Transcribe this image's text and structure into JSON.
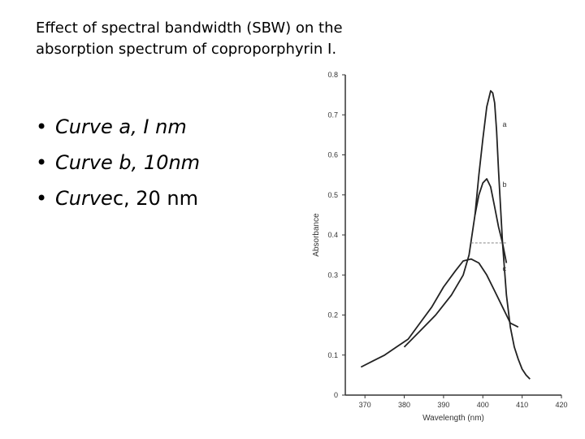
{
  "slide": {
    "title": "Effect of spectral bandwidth (SBW) on the absorption spectrum of coproporphyrin I.",
    "bullets": [
      {
        "symbol": "•",
        "italic_part": "Curve  a, I nm",
        "plain_part": ""
      },
      {
        "symbol": "•",
        "italic_part": "Curve  b, 10nm",
        "plain_part": ""
      },
      {
        "symbol": "•",
        "italic_part": "Curve ",
        "plain_part": "c, 20 nm"
      }
    ]
  },
  "chart_data": {
    "type": "line",
    "xlabel": "Wavelength (nm)",
    "ylabel": "Absorbance",
    "xlim": [
      365,
      420
    ],
    "ylim": [
      0,
      0.8
    ],
    "xticks": [
      370,
      380,
      390,
      400,
      410,
      420
    ],
    "yticks": [
      0,
      0.1,
      0.2,
      0.3,
      0.4,
      0.5,
      0.6,
      0.7,
      0.8
    ],
    "grid": false,
    "series": [
      {
        "name": "a",
        "x": [
          380,
          384,
          388,
          392,
          395,
          396.5,
          398,
          399,
          400,
          401,
          402,
          402.5,
          403,
          403.5,
          404,
          405,
          406,
          407,
          408,
          409,
          410,
          411,
          412
        ],
        "y": [
          0.12,
          0.16,
          0.2,
          0.25,
          0.3,
          0.35,
          0.45,
          0.55,
          0.64,
          0.72,
          0.76,
          0.755,
          0.73,
          0.66,
          0.56,
          0.38,
          0.25,
          0.17,
          0.12,
          0.09,
          0.065,
          0.05,
          0.04
        ]
      },
      {
        "name": "b",
        "x": [
          398,
          399,
          400,
          401,
          402,
          403,
          404,
          405,
          406
        ],
        "y": [
          0.45,
          0.5,
          0.53,
          0.54,
          0.52,
          0.47,
          0.42,
          0.38,
          0.33
        ]
      },
      {
        "name": "c",
        "x": [
          369,
          372,
          375,
          378,
          381,
          384,
          387,
          390,
          393,
          395,
          397,
          399,
          401,
          403,
          405,
          407,
          409
        ],
        "y": [
          0.07,
          0.085,
          0.1,
          0.12,
          0.14,
          0.18,
          0.22,
          0.27,
          0.31,
          0.335,
          0.34,
          0.33,
          0.3,
          0.26,
          0.22,
          0.18,
          0.17
        ]
      }
    ],
    "reference_line": {
      "y": 0.38,
      "x_start": 397,
      "x_end": 406
    },
    "annotations": [
      {
        "text": "a",
        "x": 405,
        "y": 0.67
      },
      {
        "text": "b",
        "x": 405,
        "y": 0.52
      },
      {
        "text": "c",
        "x": 405,
        "y": 0.31
      }
    ],
    "colors": {
      "line": "#222222",
      "axis": "#333333",
      "dashed": "#888888"
    }
  }
}
